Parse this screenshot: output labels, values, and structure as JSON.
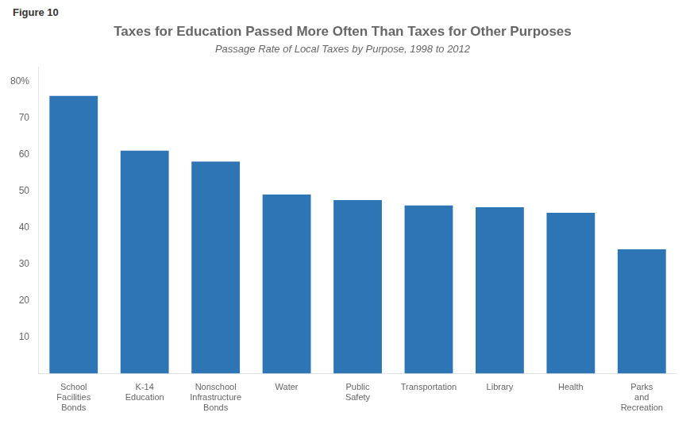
{
  "chart_data": {
    "type": "bar",
    "title": "Taxes for Education Passed More Often Than Taxes for Other Purposes",
    "subtitle": "Passage Rate of Local Taxes by Purpose, 1998 to 2012",
    "annotations": [
      "Figure 10"
    ],
    "categories": [
      "School\nFacilities\nBonds",
      "K-14\nEducation",
      "Nonschool\nInfrastructure\nBonds",
      "Water",
      "Public\nSafety",
      "Transportation",
      "Library",
      "Health",
      "Parks\nand\nRecreation"
    ],
    "values": [
      76,
      61,
      58,
      49,
      47.5,
      46,
      45.5,
      44,
      34
    ],
    "color": "#2E75B6",
    "ylim": [
      0,
      84
    ],
    "yticks": [
      10,
      20,
      30,
      40,
      50,
      60,
      70,
      {
        "value": 80,
        "label": "80%"
      }
    ],
    "grid": false
  }
}
